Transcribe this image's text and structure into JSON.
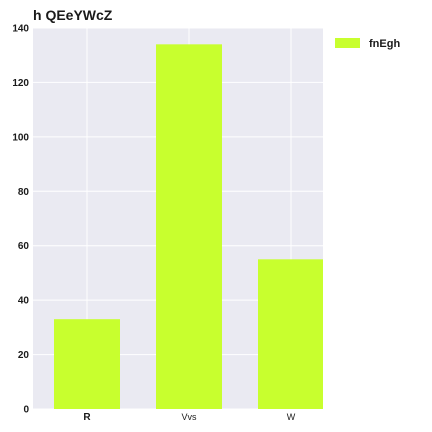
{
  "chart_data": {
    "type": "bar",
    "title": "h QEeYWcZ",
    "categories": [
      "R",
      "Vvs",
      "W"
    ],
    "series": [
      {
        "name": "fnEgh",
        "values": [
          33,
          134,
          55
        ],
        "color": "#c8ff2e"
      }
    ],
    "ylim": [
      0,
      140
    ],
    "yticks": [
      0,
      20,
      40,
      60,
      80,
      100,
      120,
      140
    ],
    "grid": true,
    "legend_position": "top-right",
    "plot_background": "#eaeaf2",
    "grid_color": "#ffffff"
  }
}
